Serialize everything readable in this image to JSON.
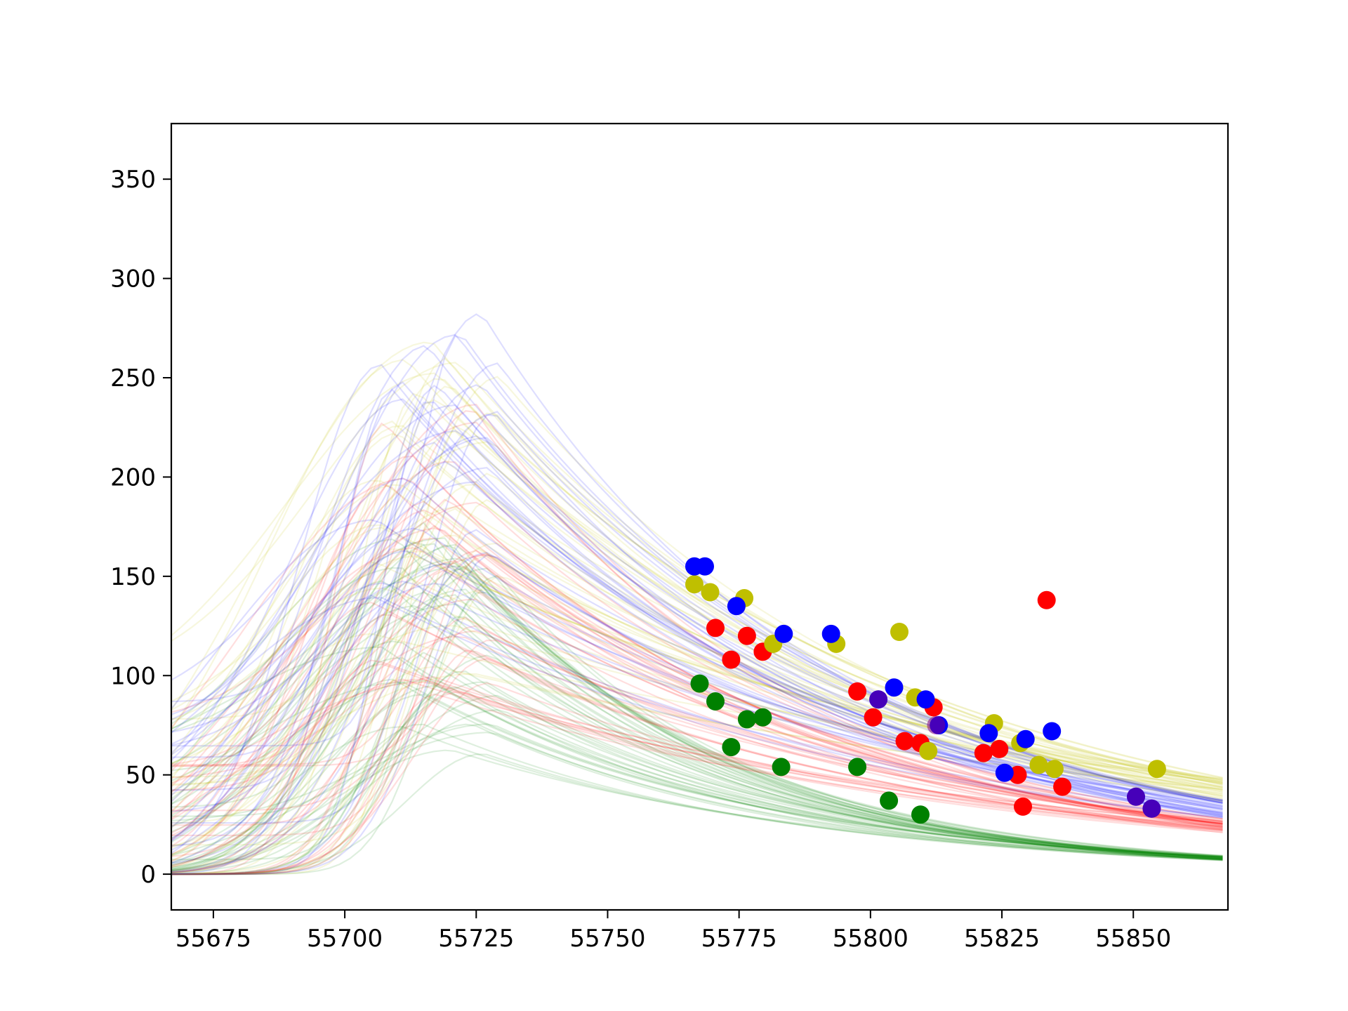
{
  "chart_data": {
    "type": "scatter",
    "title": "",
    "xlabel": "",
    "ylabel": "",
    "xlim": [
      55667,
      55868
    ],
    "ylim": [
      -18,
      378
    ],
    "xticks": [
      55675,
      55700,
      55725,
      55750,
      55775,
      55800,
      55825,
      55850
    ],
    "yticks": [
      0,
      50,
      100,
      150,
      200,
      250,
      300,
      350
    ],
    "xtick_labels": [
      "55675",
      "55700",
      "55725",
      "55750",
      "55775",
      "55800",
      "55825",
      "55850"
    ],
    "ytick_labels": [
      "0",
      "50",
      "100",
      "150",
      "200",
      "250",
      "300",
      "350"
    ],
    "grid": false,
    "legend": "none",
    "model_curves": {
      "description_free": true,
      "style": "many semi-transparent model realizations per band",
      "bands": [
        {
          "color": "#008000",
          "n": 45,
          "tail_at_xmax": 8
        },
        {
          "color": "#ff0000",
          "n": 40,
          "tail_at_xmax": 24
        },
        {
          "color": "#bfbf00",
          "n": 40,
          "tail_at_xmax": 42
        },
        {
          "color": "#0000ff",
          "n": 35,
          "tail_at_xmax": 33
        }
      ]
    },
    "series": [
      {
        "color": "#008000",
        "x": [
          55767.5,
          55770.5,
          55773.5,
          55776.5,
          55779.5,
          55783,
          55797.5,
          55803.5,
          55809.5
        ],
        "y": [
          96,
          87,
          64,
          78,
          79,
          54,
          54,
          37,
          30
        ]
      },
      {
        "color": "#ff0000",
        "x": [
          55770.5,
          55773.5,
          55776.5,
          55779.5,
          55797.5,
          55800.5,
          55806.5,
          55809.5,
          55812,
          55821.5,
          55824.5,
          55828,
          55829,
          55833.5,
          55836.5
        ],
        "y": [
          124,
          108,
          120,
          112,
          92,
          79,
          67,
          66,
          84,
          61,
          63,
          50,
          34,
          138,
          44
        ]
      },
      {
        "color": "#bfbf00",
        "x": [
          55766.5,
          55769.5,
          55776,
          55781.5,
          55793.5,
          55805.5,
          55808.5,
          55811,
          55823.5,
          55828.5,
          55832,
          55835,
          55854.5
        ],
        "y": [
          146,
          142,
          139,
          116,
          116,
          122,
          89,
          62,
          76,
          66,
          55,
          53,
          53
        ]
      },
      {
        "color": "#0000ff",
        "x": [
          55766.5,
          55768.5,
          55774.5,
          55783.5,
          55792.5,
          55801.5,
          55804.5,
          55810.5,
          55813,
          55822.5,
          55825.5,
          55829.5,
          55834.5,
          55850.5,
          55853.5
        ],
        "y": [
          155,
          155,
          135,
          121,
          121,
          88,
          94,
          88,
          75,
          71,
          51,
          68,
          72,
          39,
          33
        ]
      },
      {
        "color": "#800080",
        "x": [
          55801.5,
          55812.5,
          55850.5,
          55853.5
        ],
        "y": [
          88,
          75,
          39,
          33
        ]
      }
    ]
  }
}
